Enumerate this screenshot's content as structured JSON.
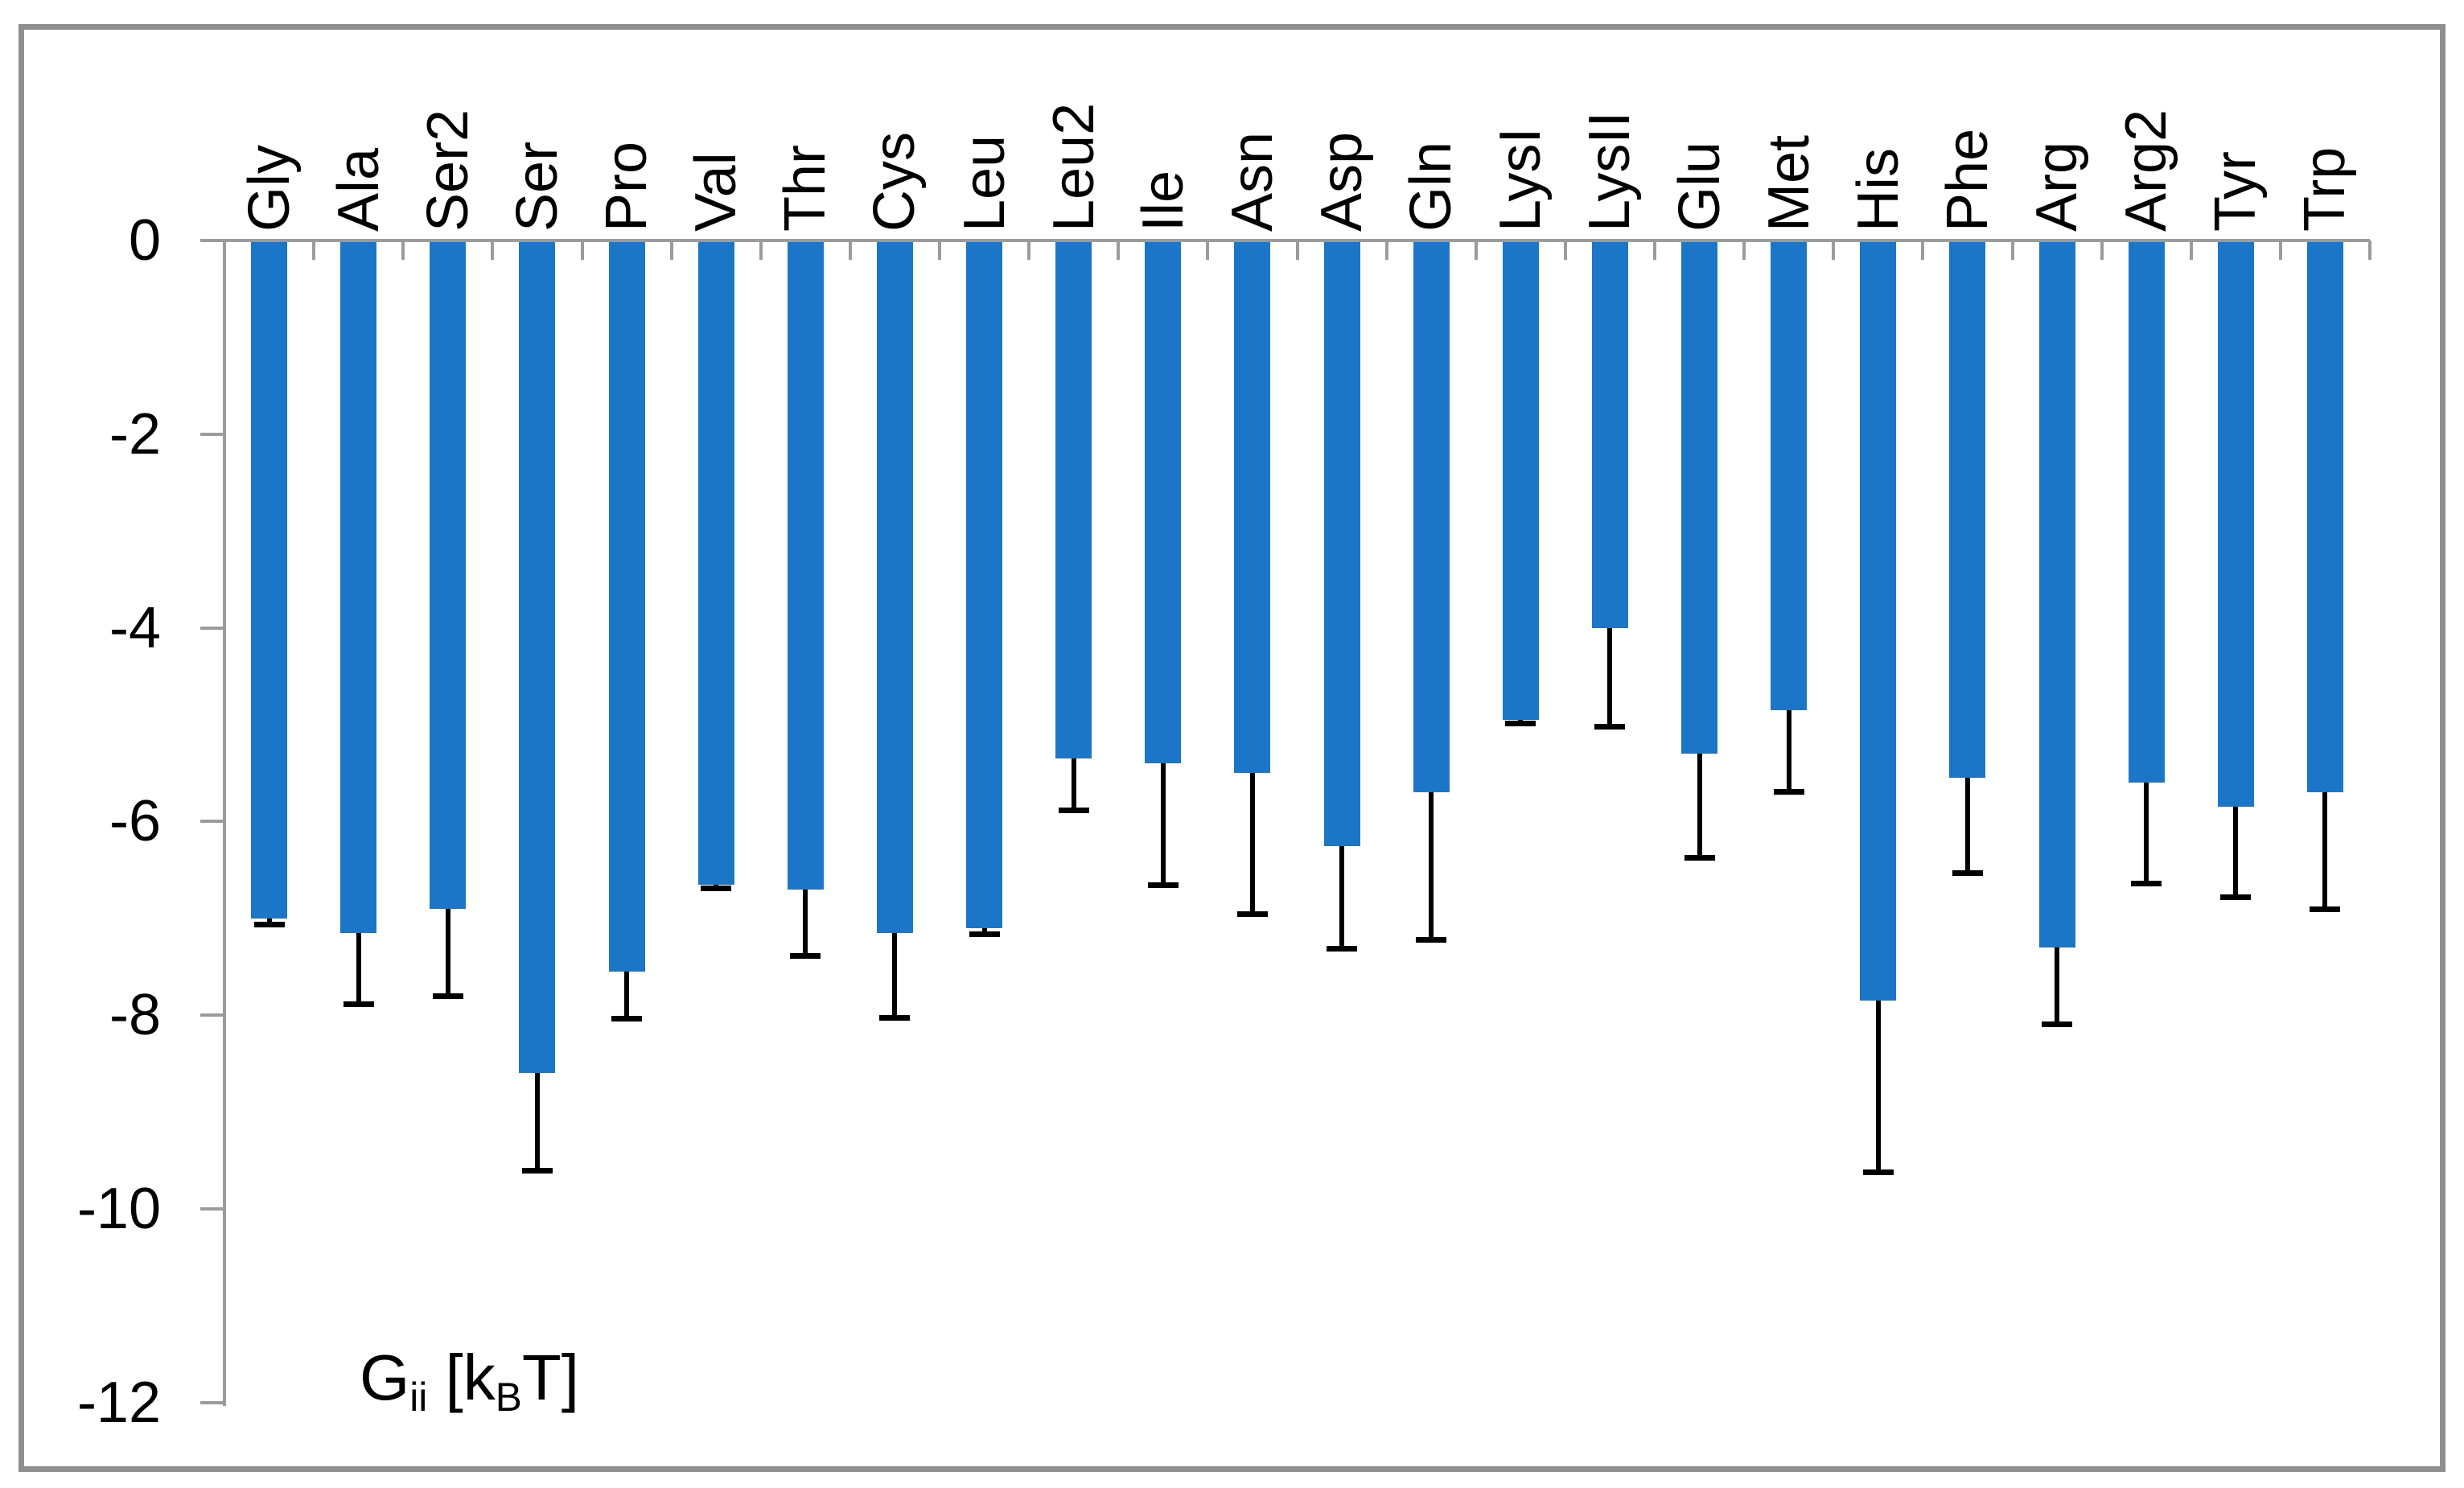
{
  "chart_data": {
    "type": "bar",
    "title": "",
    "xlabel": "",
    "ylabel": "Gii [kBT]",
    "ylabel_parts": {
      "g": "G",
      "sub_ii": "ii",
      "mid": " [k",
      "sub_b": "B",
      "end": "T]"
    },
    "categories": [
      "Gly",
      "Ala",
      "Ser2",
      "Ser",
      "Pro",
      "Val",
      "Thr",
      "Cys",
      "Leu",
      "Leu2",
      "Ile",
      "Asn",
      "Asp",
      "Gln",
      "LysI",
      "LysII",
      "Glu",
      "Met",
      "His",
      "Phe",
      "Arg",
      "Arg2",
      "Tyr",
      "Trp"
    ],
    "values": [
      -7.0,
      -7.15,
      -6.9,
      -8.6,
      -7.55,
      -6.65,
      -6.7,
      -7.15,
      -7.1,
      -5.35,
      -5.4,
      -5.5,
      -6.25,
      -5.7,
      -4.95,
      -4.0,
      -5.3,
      -4.85,
      -7.85,
      -5.55,
      -7.3,
      -5.6,
      -5.85,
      -5.7
    ],
    "errors_minus": [
      0.06,
      0.73,
      0.9,
      1.0,
      0.48,
      0.04,
      0.68,
      0.87,
      0.06,
      0.53,
      1.25,
      1.45,
      1.06,
      1.52,
      0.03,
      1.02,
      1.07,
      0.84,
      1.77,
      0.98,
      0.79,
      1.04,
      0.93,
      1.2
    ],
    "error_direction": "minus-only",
    "y_ticks": [
      0,
      -2,
      -4,
      -6,
      -8,
      -10,
      -12
    ],
    "y_tick_labels": [
      "0",
      "-2",
      "-4",
      "-6",
      "-8",
      "-10",
      "-12"
    ],
    "ylim": [
      -12,
      0
    ],
    "grid": "off",
    "legend": "none",
    "bar_color": "#1C76C8",
    "error_color": "#000000",
    "axis_color": "#9B9B9B",
    "frame_color": "#8F8F8F",
    "text_color": "#000000"
  }
}
